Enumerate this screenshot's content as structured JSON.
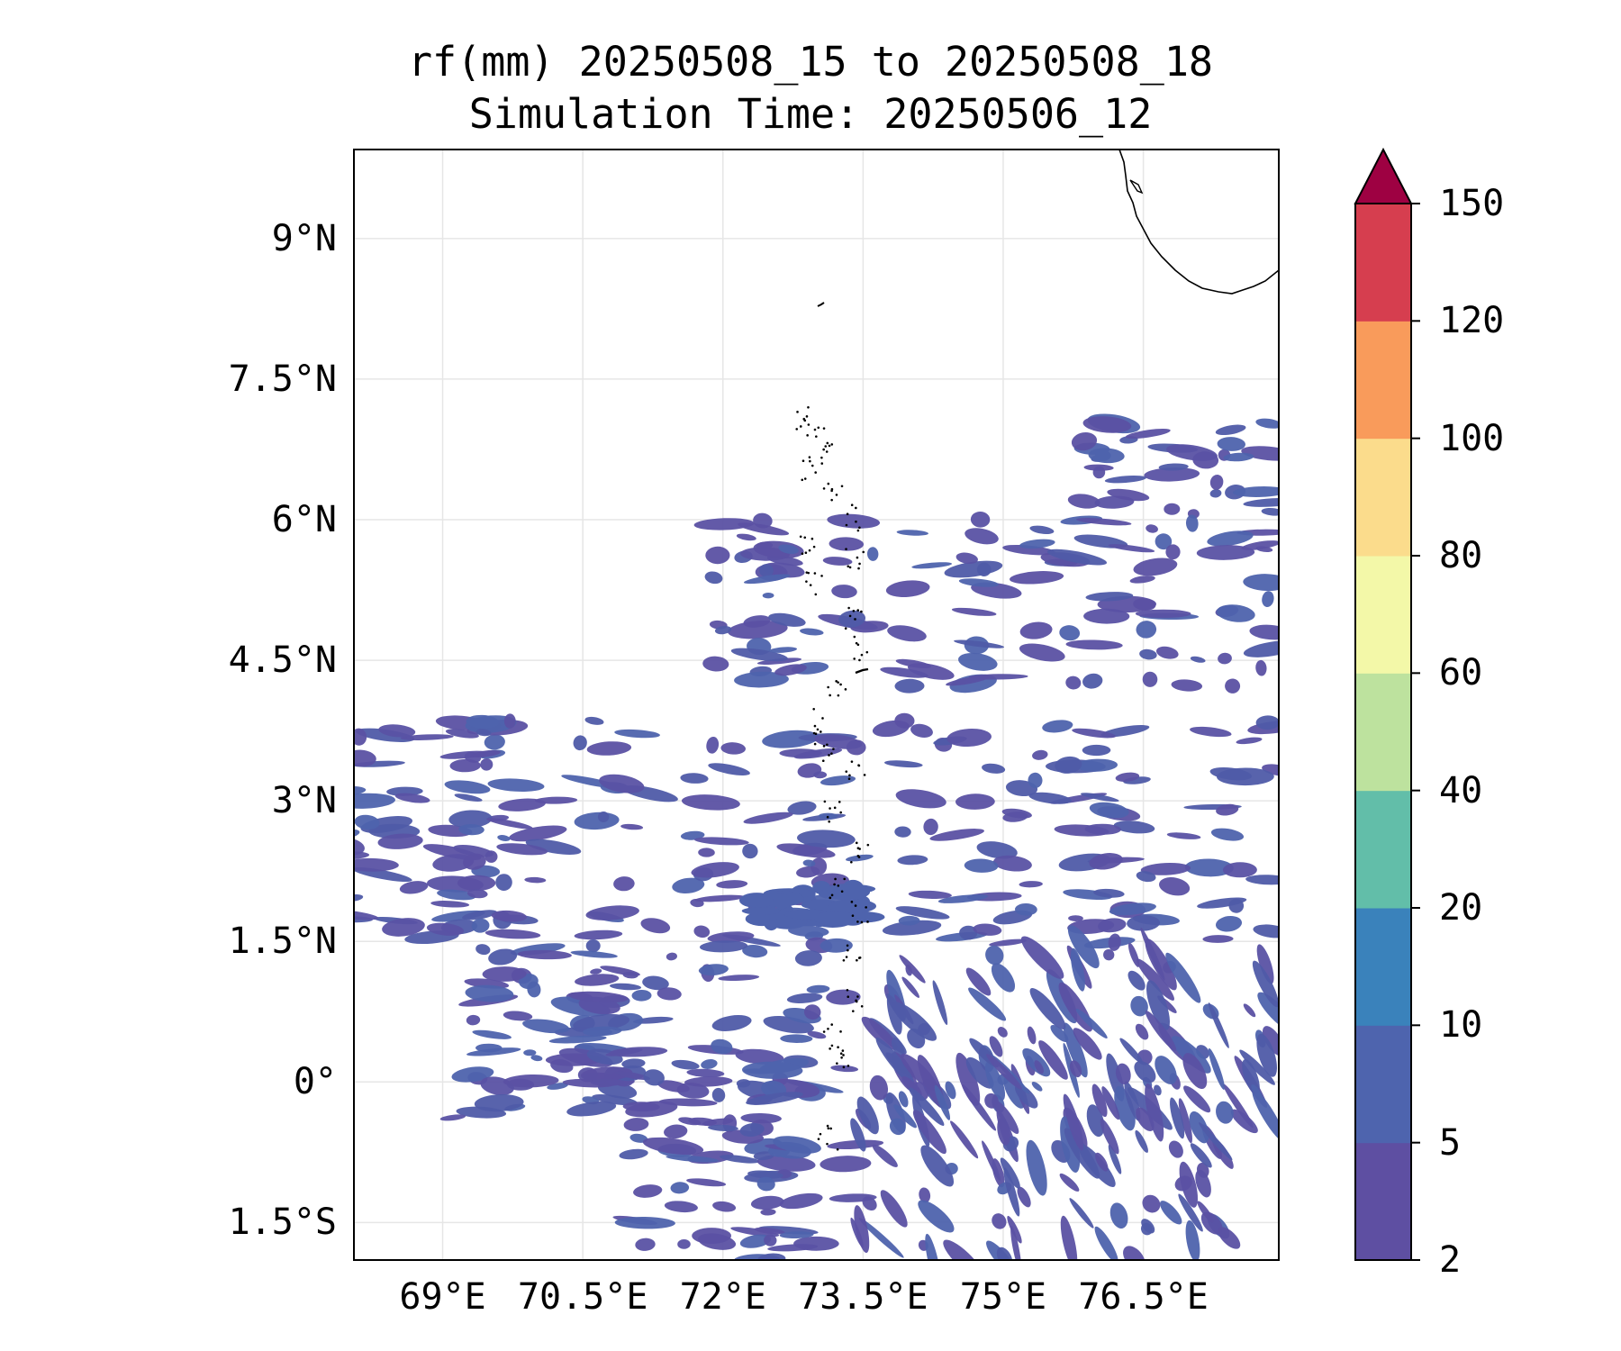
{
  "title": {
    "line1": "rf(mm) 20250508_15 to 20250508_18",
    "line2": "Simulation Time: 20250506_12"
  },
  "map": {
    "lat_labels": [
      "9°N",
      "7.5°N",
      "6°N",
      "4.5°N",
      "3°N",
      "1.5°N",
      "0°",
      "1.5°S"
    ],
    "lon_labels": [
      "69°E",
      "70.5°E",
      "72°E",
      "73.5°E",
      "75°E",
      "76.5°E"
    ],
    "lat_values": [
      9,
      7.5,
      6,
      4.5,
      3,
      1.5,
      0,
      -1.5
    ],
    "lon_values": [
      69,
      70.5,
      72,
      73.5,
      75,
      76.5
    ],
    "extent": {
      "lon_min": 68.05,
      "lon_max": 77.95,
      "lat_min": -1.9,
      "lat_max": 9.95
    },
    "gridlines": true,
    "field": "rainfall",
    "rain_color": "#5b51a3"
  },
  "colorbar": {
    "levels": [
      "2",
      "5",
      "10",
      "20",
      "40",
      "60",
      "80",
      "100",
      "120",
      "150"
    ],
    "colors": [
      "#5e4fa2",
      "#4e64ae",
      "#3a82bb",
      "#62bea9",
      "#bde29e",
      "#f3f8a8",
      "#fbdc8c",
      "#f99b5b",
      "#d63e4f",
      "#9e0142"
    ],
    "extend": "max"
  }
}
